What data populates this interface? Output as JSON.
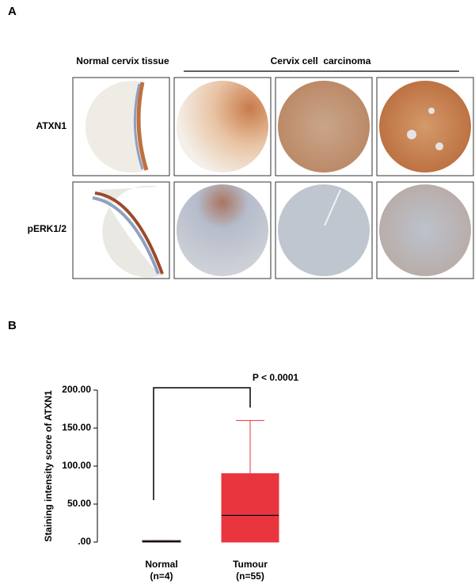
{
  "panel_a": {
    "label": "A",
    "column_headers": [
      "Normal cervix tissue",
      "Cervix cell  carcinoma"
    ],
    "row_labels": [
      "ATXN1",
      "pERK1/2"
    ]
  },
  "chart_data": {
    "type": "box",
    "panel_label": "B",
    "annotation": "P < 0.0001",
    "ylabel": "Staining intensity score of ATXN1",
    "categories": [
      "Normal",
      "Tumour"
    ],
    "category_counts": [
      "(n=4)",
      "(n=55)"
    ],
    "series": [
      {
        "colors": [
          "#a01e24",
          "#e8353e"
        ],
        "min": [
          0,
          0
        ],
        "q1": [
          0,
          0
        ],
        "median": [
          0.5,
          35
        ],
        "q3": [
          2,
          90
        ],
        "max": [
          2,
          160
        ]
      }
    ],
    "ylim": [
      0,
      200
    ],
    "yticks": [
      {
        "value": 0,
        "label": ".00"
      },
      {
        "value": 50,
        "label": "50.00"
      },
      {
        "value": 100,
        "label": "100.00"
      },
      {
        "value": 150,
        "label": "150.00"
      },
      {
        "value": 200,
        "label": "200.00"
      }
    ]
  }
}
